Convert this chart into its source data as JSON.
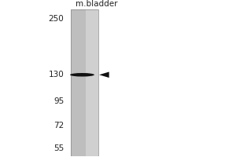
{
  "lane_label": "m.bladder",
  "mw_markers": [
    250,
    130,
    95,
    72,
    55
  ],
  "band_mw": 130,
  "bg_color": "#ffffff",
  "lane_color_left": "#c8c8c8",
  "lane_color_right": "#e0e0e0",
  "band_color": "#111111",
  "arrow_color": "#111111",
  "text_color": "#222222",
  "outer_bg": "#ffffff",
  "label_fontsize": 7.5,
  "marker_fontsize": 7.5
}
